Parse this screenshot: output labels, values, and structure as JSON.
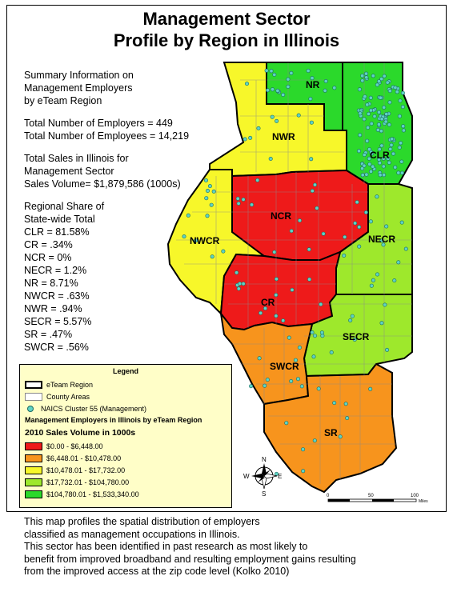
{
  "title": {
    "line1": "Management Sector",
    "line2": "Profile by Region in Illinois"
  },
  "summary": {
    "heading": [
      "Summary Information on",
      "Management Employers",
      "by eTeam Region"
    ],
    "employers": "Total Number of Employers = 449",
    "employees": "Total Number of Employees = 14,219",
    "sales": [
      "Total Sales in Illinois for",
      "Management Sector",
      "Sales Volume= $1,879,586 (1000s)"
    ],
    "share_heading": [
      "Regional Share of",
      "State-wide Total"
    ],
    "shares": [
      "CLR = 81.58%",
      "CR = .34%",
      "NCR = 0%",
      "NECR = 1.2%",
      "NR = 8.71%",
      "NWCR = .63%",
      "NWR = .94%",
      "SECR = 5.57%",
      "SR = .47%",
      "SWCR = .56%"
    ]
  },
  "regions": [
    {
      "name": "NR",
      "color": "#2bd92b"
    },
    {
      "name": "NWR",
      "color": "#f7f72a"
    },
    {
      "name": "CLR",
      "color": "#2bd92b"
    },
    {
      "name": "NCR",
      "color": "#ee1a1a"
    },
    {
      "name": "NWCR",
      "color": "#f7f72a"
    },
    {
      "name": "NECR",
      "color": "#9ee82c"
    },
    {
      "name": "CR",
      "color": "#ee1a1a"
    },
    {
      "name": "SECR",
      "color": "#9ee82c"
    },
    {
      "name": "SWCR",
      "color": "#f7941d"
    },
    {
      "name": "SR",
      "color": "#f7941d"
    }
  ],
  "legend": {
    "title": "Legend",
    "eteam_region": "eTeam Region",
    "county_areas": "County Areas",
    "naics": "NAICS Cluster 55 (Management)",
    "subtitle": "Management Employers in Illinois by eTeam Region",
    "sales_title": "2010 Sales Volume in 1000s",
    "classes": [
      {
        "label": "$0.00 - $6,448.00",
        "color": "#ee1a1a"
      },
      {
        "label": "$6,448.01 - $10,478.00",
        "color": "#f7941d"
      },
      {
        "label": "$10,478.01 - $17,732.00",
        "color": "#f7f72a"
      },
      {
        "label": "$17,732.01 - $104,780.00",
        "color": "#9ee82c"
      },
      {
        "label": "$104,780.01 - $1,533,340.00",
        "color": "#2bd92b"
      }
    ],
    "dot_color": "#5fd3c4"
  },
  "compass": {
    "n": "N",
    "s": "S",
    "e": "E",
    "w": "W"
  },
  "scale": {
    "ticks": [
      "0",
      "50",
      "100"
    ],
    "unit": "Miles"
  },
  "footer": [
    "This map profiles the spatial distribution of employers",
    "classified as management occupations in Illinois.",
    "This sector has been identified in past research as most likely to",
    "benefit from improved broadband and resulting employment gains resulting",
    "from the improved access at the zip code level (Kolko  2010)"
  ]
}
